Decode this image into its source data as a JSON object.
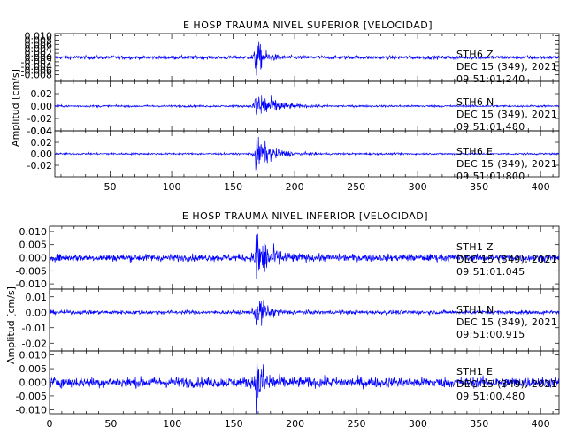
{
  "chart_data": [
    {
      "type": "line",
      "title": "E HOSP TRAUMA NIVEL SUPERIOR [VELOCIDAD]",
      "ylabel": "Amplitud [cm/s]",
      "xlim": [
        5,
        415
      ],
      "x_ticks": [
        50,
        100,
        150,
        200,
        250,
        300,
        350,
        400
      ],
      "x_tick_labels": [
        "50",
        "100",
        "150",
        "200",
        "250",
        "300",
        "350",
        "400"
      ],
      "color": "#0000ff",
      "panels": [
        {
          "ylim": [
            -0.011,
            0.011
          ],
          "y_ticks": [
            -0.008,
            -0.006,
            -0.004,
            -0.002,
            0.0,
            0.002,
            0.004,
            0.006,
            0.008,
            0.01
          ],
          "y_tick_labels": [
            "-0.008",
            "-0.006",
            "-0.004",
            "-0.002",
            "0.000",
            "0.002",
            "0.004",
            "0.006",
            "0.008",
            "0.010"
          ],
          "station": "STH6   Z",
          "date": "DEC 15 (349), 2021",
          "time": "09:51:01.240",
          "noise": 0.0008,
          "event_x": 168,
          "event_peak": 0.0095,
          "decay": 6
        },
        {
          "ylim": [
            -0.04,
            0.04
          ],
          "y_ticks": [
            -0.04,
            -0.02,
            0.0,
            0.02
          ],
          "y_tick_labels": [
            "-0.04",
            "-0.02",
            "0.00",
            "0.02"
          ],
          "station": "STH6   N",
          "date": "DEC 15 (349), 2021",
          "time": "09:51:01.480",
          "noise": 0.0015,
          "event_x": 168,
          "event_peak": 0.034,
          "decay": 12
        },
        {
          "ylim": [
            -0.04,
            0.04
          ],
          "y_ticks": [
            -0.02,
            0.0,
            0.02,
            0.04
          ],
          "y_tick_labels": [
            "-0.02",
            "0.00",
            "0.02",
            "0.04"
          ],
          "station": "STH6   E",
          "date": "DEC 15 (349), 2021",
          "time": "09:51:01.800",
          "noise": 0.0015,
          "event_x": 168,
          "event_peak": 0.032,
          "decay": 12
        }
      ]
    },
    {
      "type": "line",
      "title": "E HOSP TRAUMA NIVEL INFERIOR [VELOCIDAD]",
      "ylabel": "Amplitud [cm/s]",
      "xlim": [
        0,
        415
      ],
      "x_ticks": [
        0,
        50,
        100,
        150,
        200,
        250,
        300,
        350,
        400
      ],
      "x_tick_labels": [
        "0",
        "50",
        "100",
        "150",
        "200",
        "250",
        "300",
        "350",
        "400"
      ],
      "color": "#0000ff",
      "panels": [
        {
          "ylim": [
            -0.012,
            0.012
          ],
          "y_ticks": [
            -0.01,
            -0.005,
            0.0,
            0.005,
            0.01
          ],
          "y_tick_labels": [
            "-0.010",
            "-0.005",
            "0.000",
            "0.005",
            "0.010"
          ],
          "station": "STH1   Z",
          "date": "DEC 15 (349), 2021",
          "time": "09:51:01.045",
          "noise": 0.0013,
          "event_x": 168,
          "event_peak": 0.011,
          "decay": 10
        },
        {
          "ylim": [
            -0.025,
            0.015
          ],
          "y_ticks": [
            -0.02,
            -0.01,
            0.0,
            0.01
          ],
          "y_tick_labels": [
            "-0.02",
            "-0.01",
            "0.00",
            "0.01"
          ],
          "station": "STH1   N",
          "date": "DEC 15 (349), 2021",
          "time": "09:51:00.915",
          "noise": 0.0012,
          "event_x": 168,
          "event_peak": 0.012,
          "decay": 8
        },
        {
          "ylim": [
            -0.0115,
            0.0115
          ],
          "y_ticks": [
            -0.01,
            -0.005,
            0.0,
            0.005,
            0.01
          ],
          "y_tick_labels": [
            "-0.010",
            "-0.005",
            "0.000",
            "0.005",
            "0.010"
          ],
          "station": "STH1   E",
          "date": "DEC 15 (349), 2021",
          "time": "09:51:00.480",
          "noise": 0.0018,
          "event_x": 168,
          "event_peak": 0.0105,
          "decay": 7
        }
      ]
    }
  ]
}
